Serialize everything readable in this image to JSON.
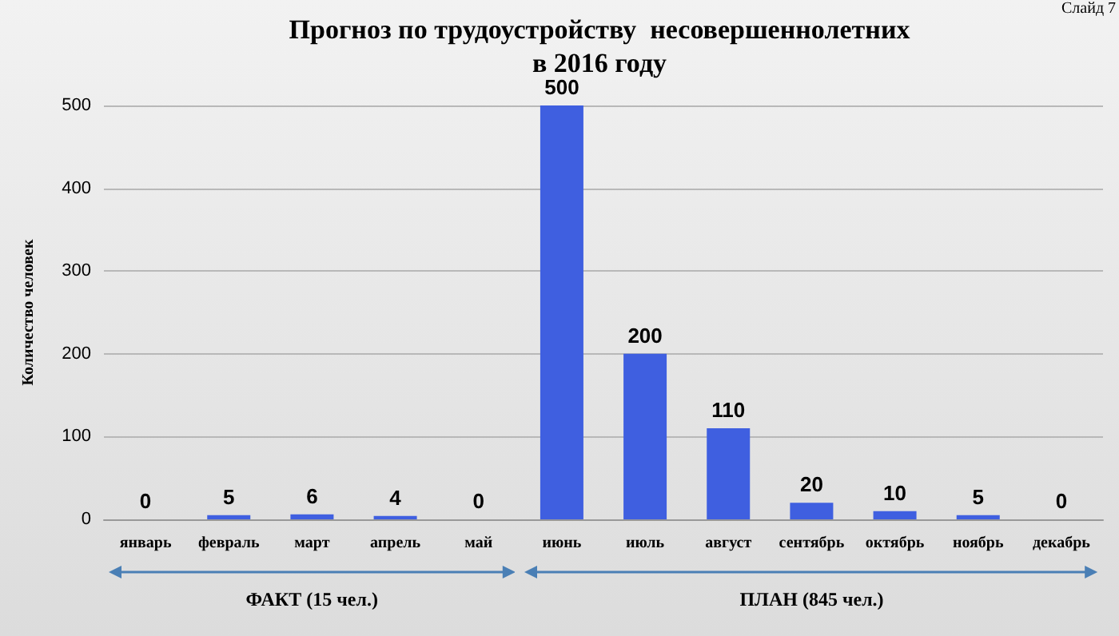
{
  "chart_data": {
    "type": "bar",
    "title": "Прогноз по трудоустройству  несовершеннолетних\nв 2016 году",
    "ylabel": "Количество человек",
    "categories": [
      "январь",
      "февраль",
      "март",
      "апрель",
      "май",
      "июнь",
      "июль",
      "август",
      "сентябрь",
      "октябрь",
      "ноябрь",
      "декабрь"
    ],
    "values": [
      0,
      5,
      6,
      4,
      0,
      500,
      200,
      110,
      20,
      10,
      5,
      0
    ],
    "color": "#3f5fe0",
    "ylim": [
      0,
      500
    ],
    "yticks": [
      0,
      100,
      200,
      300,
      400,
      500
    ],
    "grid": "y",
    "data_labels": true,
    "annotations": [
      "ФАКТ (15 чел.)",
      "ПЛАН (845 чел.)",
      "Слайд 7"
    ]
  }
}
